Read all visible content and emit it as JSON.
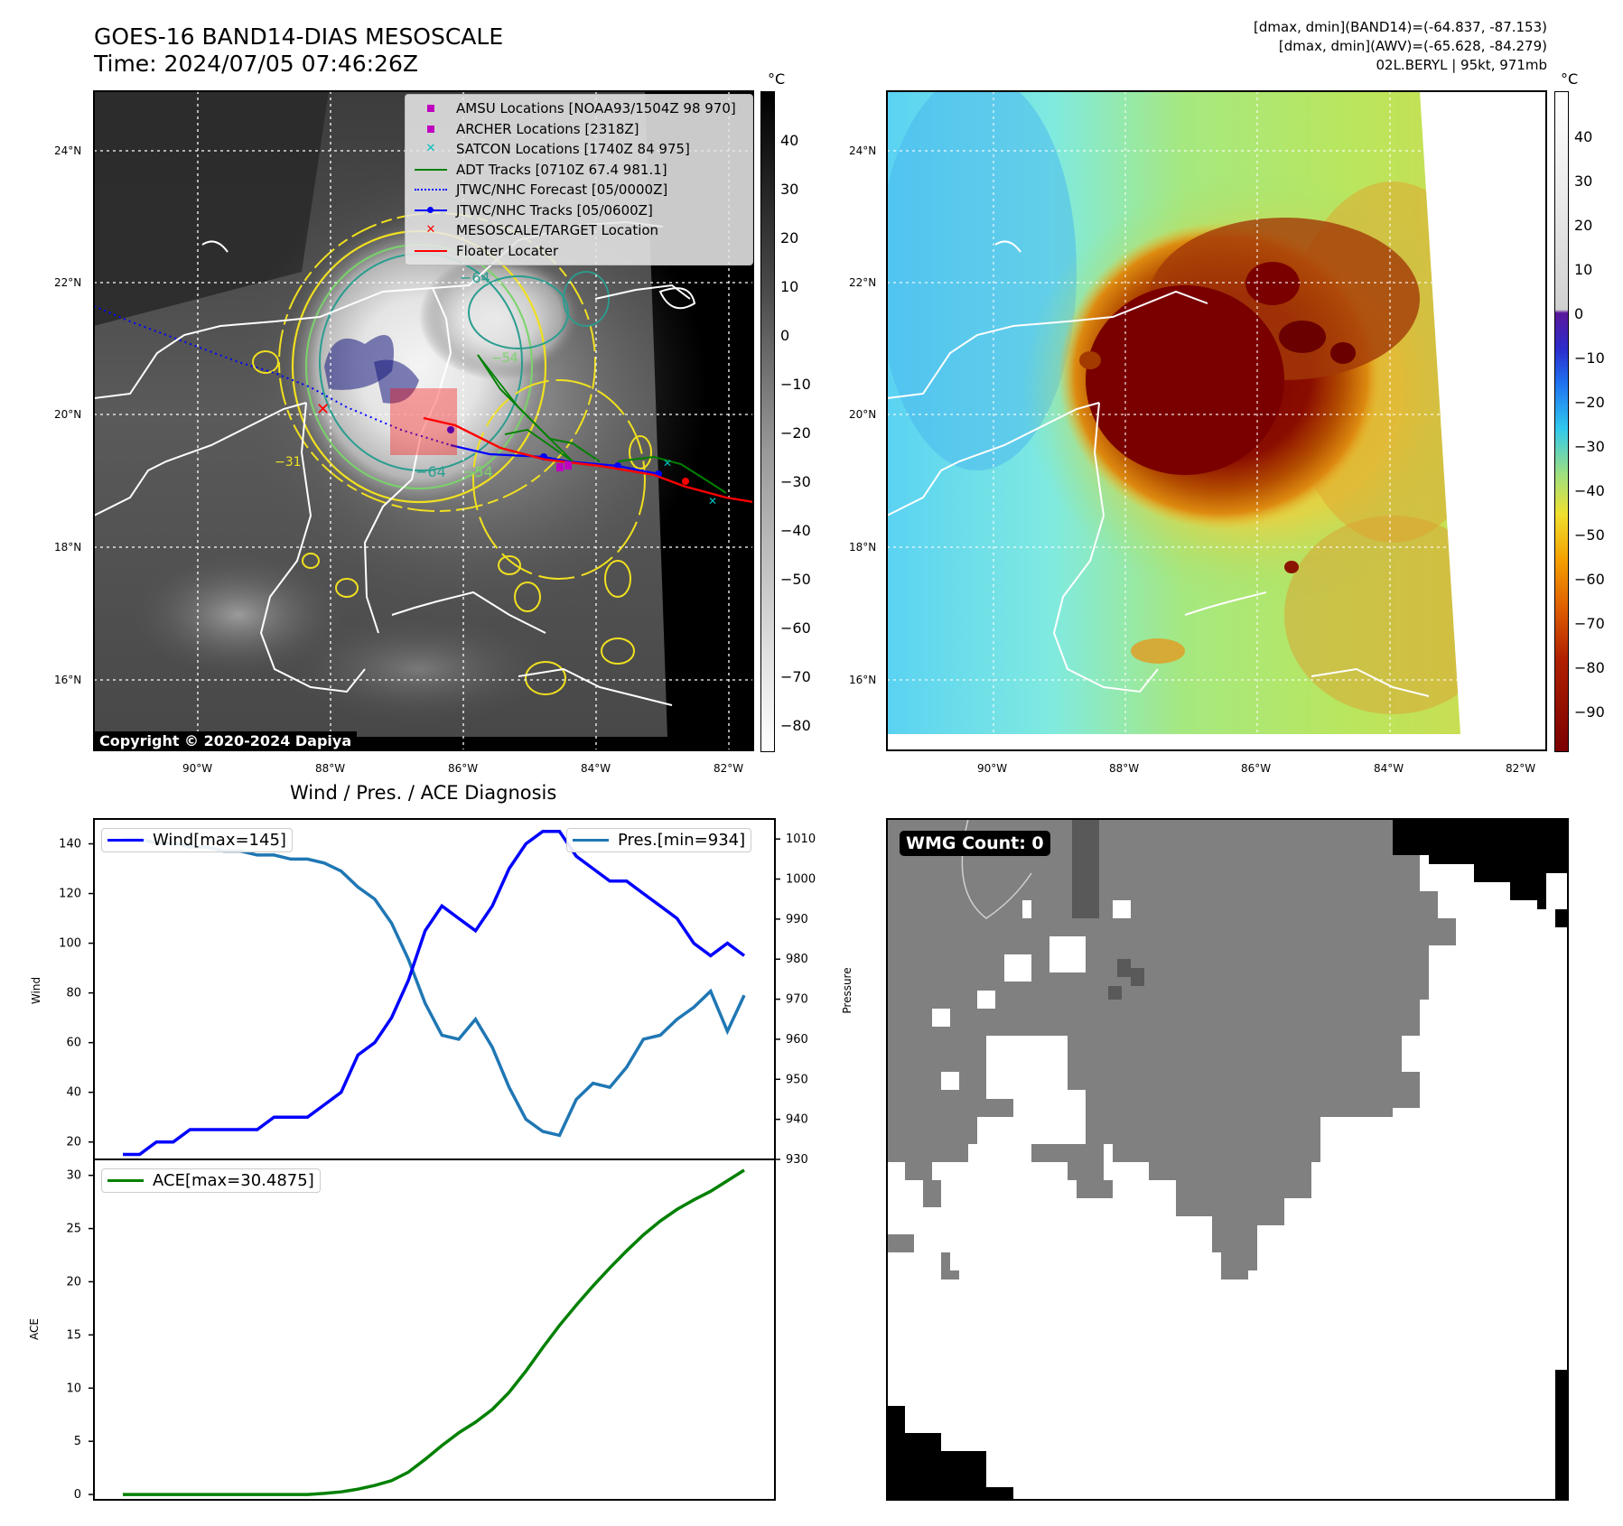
{
  "header": {
    "title_line1": "GOES-16 BAND14-DIAS MESOSCALE",
    "title_line2": "Time: 2024/07/05 07:46:26Z",
    "info_line1": "[dmax, dmin](BAND14)=(-64.837, -87.153)",
    "info_line2": "[dmax, dmin](AWV)=(-65.628, -84.279)",
    "info_line3": "02L.BERYL | 95kt, 971mb"
  },
  "ir_map": {
    "lon_ticks": [
      "90°W",
      "88°W",
      "86°W",
      "84°W",
      "82°W"
    ],
    "lat_ticks": [
      "24°N",
      "22°N",
      "20°N",
      "18°N",
      "16°N"
    ],
    "colorbar_unit": "°C",
    "colorbar_ticks": [
      "40",
      "30",
      "20",
      "10",
      "0",
      "−10",
      "−20",
      "−30",
      "−40",
      "−50",
      "−60",
      "−70",
      "−80"
    ],
    "copyright": "Copyright © 2020-2024 Dapiya",
    "contour_labels": [
      "−64",
      "−54",
      "−64",
      "−54",
      "−31"
    ],
    "legend": [
      {
        "label": "AMSU Locations [NOAA93/1504Z 98 970]",
        "marker": "square",
        "color": "#bf00bf"
      },
      {
        "label": "ARCHER Locations [2318Z]",
        "marker": "square",
        "color": "#bf00bf"
      },
      {
        "label": "SATCON Locations [1740Z 84 975]",
        "marker": "x",
        "color": "#00bfbf"
      },
      {
        "label": "ADT Tracks [0710Z 67.4 981.1]",
        "marker": "line",
        "color": "#008000"
      },
      {
        "label": "JTWC/NHC Forecast [05/0000Z]",
        "marker": "dotted",
        "color": "#0000ff"
      },
      {
        "label": "JTWC/NHC Tracks [05/0600Z]",
        "marker": "line-dot",
        "color": "#0000ff"
      },
      {
        "label": "MESOSCALE/TARGET Location",
        "marker": "x",
        "color": "#ff0000"
      },
      {
        "label": "Floater Locater",
        "marker": "line",
        "color": "#ff0000"
      }
    ]
  },
  "wv_map": {
    "lon_ticks": [
      "90°W",
      "88°W",
      "86°W",
      "84°W",
      "82°W"
    ],
    "lat_ticks": [
      "24°N",
      "22°N",
      "20°N",
      "18°N",
      "16°N"
    ],
    "colorbar_unit": "°C",
    "colorbar_ticks": [
      "40",
      "30",
      "20",
      "10",
      "0",
      "−10",
      "−20",
      "−30",
      "−40",
      "−50",
      "−60",
      "−70",
      "−80",
      "−90"
    ]
  },
  "diag_title": "Wind / Pres. / ACE Diagnosis",
  "wmg_label": "WMG Count: 0",
  "chart_data": [
    {
      "type": "line",
      "title": "Wind / Pres. / ACE Diagnosis",
      "ylabel": "Wind",
      "y2label": "Pressure",
      "ylim": [
        13,
        150
      ],
      "y2lim": [
        930,
        1015
      ],
      "yticks": [
        "20",
        "40",
        "60",
        "80",
        "100",
        "120",
        "140"
      ],
      "y2ticks": [
        "930",
        "940",
        "950",
        "960",
        "970",
        "980",
        "990",
        "1000",
        "1010"
      ],
      "series": [
        {
          "name": "Wind[max=145]",
          "color": "#0000ff",
          "values": [
            15,
            15,
            20,
            20,
            25,
            25,
            25,
            25,
            25,
            30,
            30,
            30,
            35,
            40,
            55,
            60,
            70,
            85,
            105,
            115,
            110,
            105,
            115,
            130,
            140,
            145,
            145,
            135,
            130,
            125,
            125,
            120,
            115,
            110,
            100,
            95,
            100,
            95
          ]
        },
        {
          "name": "Pres.[min=934]",
          "color": "#1f77b4",
          "values": [
            1010,
            1010,
            1009,
            1009,
            1008,
            1008,
            1007,
            1007,
            1006,
            1006,
            1005,
            1005,
            1004,
            1002,
            998,
            995,
            989,
            980,
            969,
            961,
            960,
            965,
            958,
            948,
            940,
            937,
            936,
            945,
            949,
            948,
            953,
            960,
            961,
            965,
            968,
            972,
            962,
            971
          ]
        }
      ]
    },
    {
      "type": "line",
      "ylabel": "ACE",
      "ylim": [
        -0.5,
        31.5
      ],
      "yticks": [
        "0",
        "5",
        "10",
        "15",
        "20",
        "25",
        "30"
      ],
      "series": [
        {
          "name": "ACE[max=30.4875]",
          "color": "#008000",
          "values": [
            0,
            0,
            0,
            0,
            0,
            0,
            0,
            0,
            0,
            0,
            0,
            0,
            0.1,
            0.25,
            0.5,
            0.85,
            1.3,
            2.1,
            3.3,
            4.6,
            5.8,
            6.8,
            8.0,
            9.6,
            11.6,
            13.8,
            15.9,
            17.8,
            19.6,
            21.3,
            22.9,
            24.4,
            25.7,
            26.8,
            27.7,
            28.5,
            29.5,
            30.49
          ]
        }
      ]
    }
  ]
}
